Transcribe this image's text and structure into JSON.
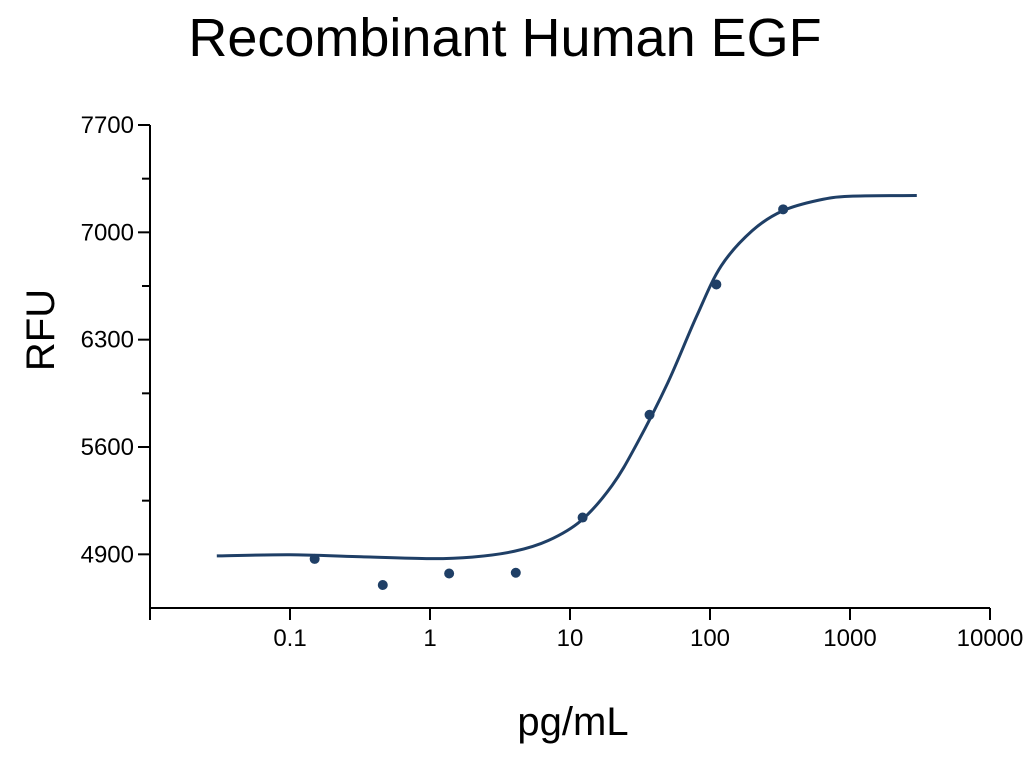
{
  "chart_data": {
    "type": "scatter",
    "title": "Recombinant Human EGF",
    "xlabel": "pg/mL",
    "ylabel": "RFU",
    "x_scale": "log",
    "xlim": [
      0.01,
      10000
    ],
    "ylim": [
      4550,
      7700
    ],
    "x_ticks": [
      0.1,
      1,
      10,
      100,
      1000,
      10000
    ],
    "x_tick_labels": [
      "0.1",
      "1",
      "10",
      "100",
      "1000",
      "10000"
    ],
    "y_ticks": [
      4900,
      5600,
      6300,
      7000,
      7700
    ],
    "y_tick_labels": [
      "4900",
      "5600",
      "6300",
      "7000",
      "7700"
    ],
    "y_minor_ticks": [
      5250,
      5950,
      6650,
      7350
    ],
    "grid": false,
    "color": "#1f3f66",
    "points": [
      {
        "x": 0.15,
        "y": 4870
      },
      {
        "x": 0.46,
        "y": 4700
      },
      {
        "x": 1.37,
        "y": 4775
      },
      {
        "x": 4.1,
        "y": 4780
      },
      {
        "x": 12.3,
        "y": 5140
      },
      {
        "x": 37,
        "y": 5810
      },
      {
        "x": 111,
        "y": 6660
      },
      {
        "x": 333,
        "y": 7150
      }
    ],
    "fit_curve": [
      {
        "x": 0.03,
        "y": 4890
      },
      {
        "x": 0.1,
        "y": 4897
      },
      {
        "x": 0.3,
        "y": 4885
      },
      {
        "x": 1,
        "y": 4872
      },
      {
        "x": 2,
        "y": 4882
      },
      {
        "x": 4,
        "y": 4920
      },
      {
        "x": 7,
        "y": 4990
      },
      {
        "x": 12,
        "y": 5120
      },
      {
        "x": 20,
        "y": 5350
      },
      {
        "x": 30,
        "y": 5620
      },
      {
        "x": 50,
        "y": 6020
      },
      {
        "x": 80,
        "y": 6450
      },
      {
        "x": 120,
        "y": 6780
      },
      {
        "x": 200,
        "y": 7010
      },
      {
        "x": 330,
        "y": 7140
      },
      {
        "x": 600,
        "y": 7210
      },
      {
        "x": 1000,
        "y": 7235
      },
      {
        "x": 3000,
        "y": 7240
      }
    ]
  }
}
